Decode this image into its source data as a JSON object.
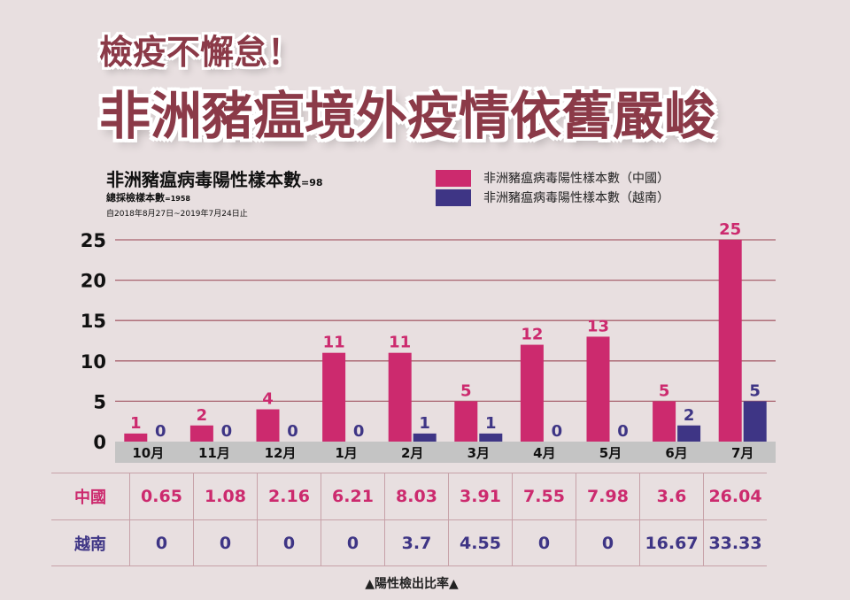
{
  "headline": {
    "sub": "檢疫不懈怠！",
    "main": "非洲豬瘟境外疫情依舊嚴峻"
  },
  "chart_info": {
    "title": "非洲豬瘟病毒陽性樣本數",
    "title_total": "=98",
    "subtitle": "總採檢樣本數",
    "subtitle_total": "=1958",
    "date_range": "自2018年8月27日~2019年7月24日止"
  },
  "colors": {
    "china": "#cc2a6e",
    "vietnam": "#3e3585",
    "grid": "#a8626e",
    "axis_band": "#c4c4c4",
    "background": "#e8dfe0"
  },
  "chart_data": {
    "type": "bar",
    "categories": [
      "10月",
      "11月",
      "12月",
      "1月",
      "2月",
      "3月",
      "4月",
      "5月",
      "6月",
      "7月"
    ],
    "series": [
      {
        "name": "非洲豬瘟病毒陽性樣本數（中國）",
        "values": [
          1,
          2,
          4,
          11,
          11,
          5,
          12,
          13,
          5,
          25
        ]
      },
      {
        "name": "非洲豬瘟病毒陽性樣本數（越南）",
        "values": [
          0,
          0,
          0,
          0,
          1,
          1,
          0,
          0,
          2,
          5
        ]
      }
    ],
    "yticks": [
      0,
      5,
      10,
      15,
      20,
      25
    ],
    "ylim": [
      0,
      25
    ],
    "grid": true,
    "legend": "top-right"
  },
  "table": {
    "rows": [
      {
        "label": "中國",
        "values": [
          "0.65",
          "1.08",
          "2.16",
          "6.21",
          "8.03",
          "3.91",
          "7.55",
          "7.98",
          "3.6",
          "26.04"
        ]
      },
      {
        "label": "越南",
        "values": [
          "0",
          "0",
          "0",
          "0",
          "3.7",
          "4.55",
          "0",
          "0",
          "16.67",
          "33.33"
        ]
      }
    ]
  },
  "footer": "▲陽性檢出比率▲"
}
